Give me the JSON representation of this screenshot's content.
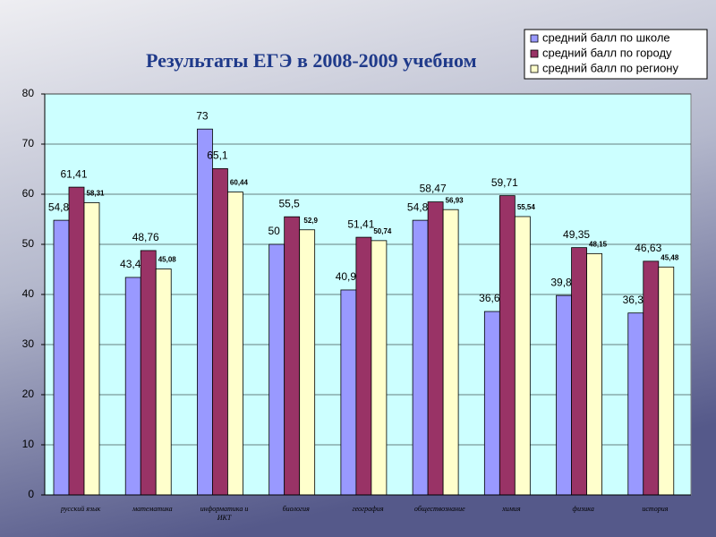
{
  "chart_data": {
    "type": "bar",
    "title": "Результаты ЕГЭ в 2008-2009 учебном",
    "categories": [
      "русский язык",
      "математика",
      "информатика и\nИКТ",
      "биология",
      "география",
      "обществознание",
      "химия",
      "физика",
      "история"
    ],
    "series": [
      {
        "name": "средний балл по школе",
        "color": "#9999ff",
        "values": [
          54.8,
          43.4,
          73,
          50,
          40.9,
          54.8,
          36.6,
          39.8,
          36.3
        ],
        "value_labels": [
          "54,8",
          "43,4",
          "73",
          "50",
          "40,9",
          "54,8",
          "36,6",
          "39,8",
          "36,3"
        ]
      },
      {
        "name": "средний балл по городу",
        "color": "#993366",
        "values": [
          61.41,
          48.76,
          65.1,
          55.5,
          51.41,
          58.47,
          59.71,
          49.35,
          46.63
        ],
        "value_labels": [
          "61,41",
          "48,76",
          "65,1",
          "55,5",
          "51,41",
          "58,47",
          "59,71",
          "49,35",
          "46,63"
        ]
      },
      {
        "name": "средний балл по региону",
        "color": "#ffffcc",
        "values": [
          58.31,
          45.08,
          60.44,
          52.9,
          50.74,
          56.93,
          55.54,
          48.15,
          45.48
        ],
        "value_labels": [
          "58,31",
          "45,08",
          "60,44",
          "52,9",
          "50,74",
          "56,93",
          "55,54",
          "48,15",
          "45,48"
        ]
      }
    ],
    "ylim": [
      0,
      80
    ],
    "yticks": [
      0,
      10,
      20,
      30,
      40,
      50,
      60,
      70,
      80
    ],
    "grid": true,
    "legend": "top-right"
  }
}
